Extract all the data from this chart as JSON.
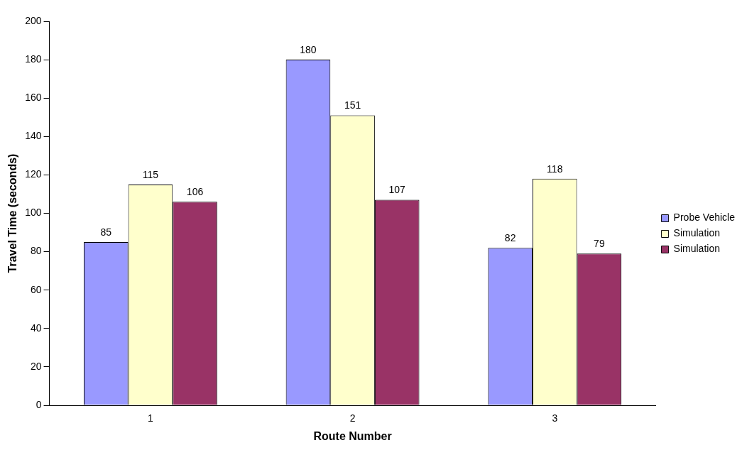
{
  "chart_data": {
    "type": "bar",
    "xlabel": "Route Number",
    "ylabel": "Travel Time (seconds)",
    "categories": [
      "1",
      "2",
      "3"
    ],
    "series": [
      {
        "name": "Probe Vehicle",
        "color": "#9999ff",
        "values": [
          85,
          180,
          82
        ]
      },
      {
        "name": "Simulation",
        "color": "#ffffcc",
        "values": [
          115,
          151,
          118
        ]
      },
      {
        "name": "Simulation",
        "color": "#993366",
        "values": [
          106,
          107,
          79
        ]
      }
    ],
    "ylim": [
      0,
      200
    ],
    "yticks": [
      0,
      20,
      40,
      60,
      80,
      100,
      120,
      140,
      160,
      180,
      200
    ],
    "grid": false,
    "legend": "right",
    "data_labels": true
  }
}
